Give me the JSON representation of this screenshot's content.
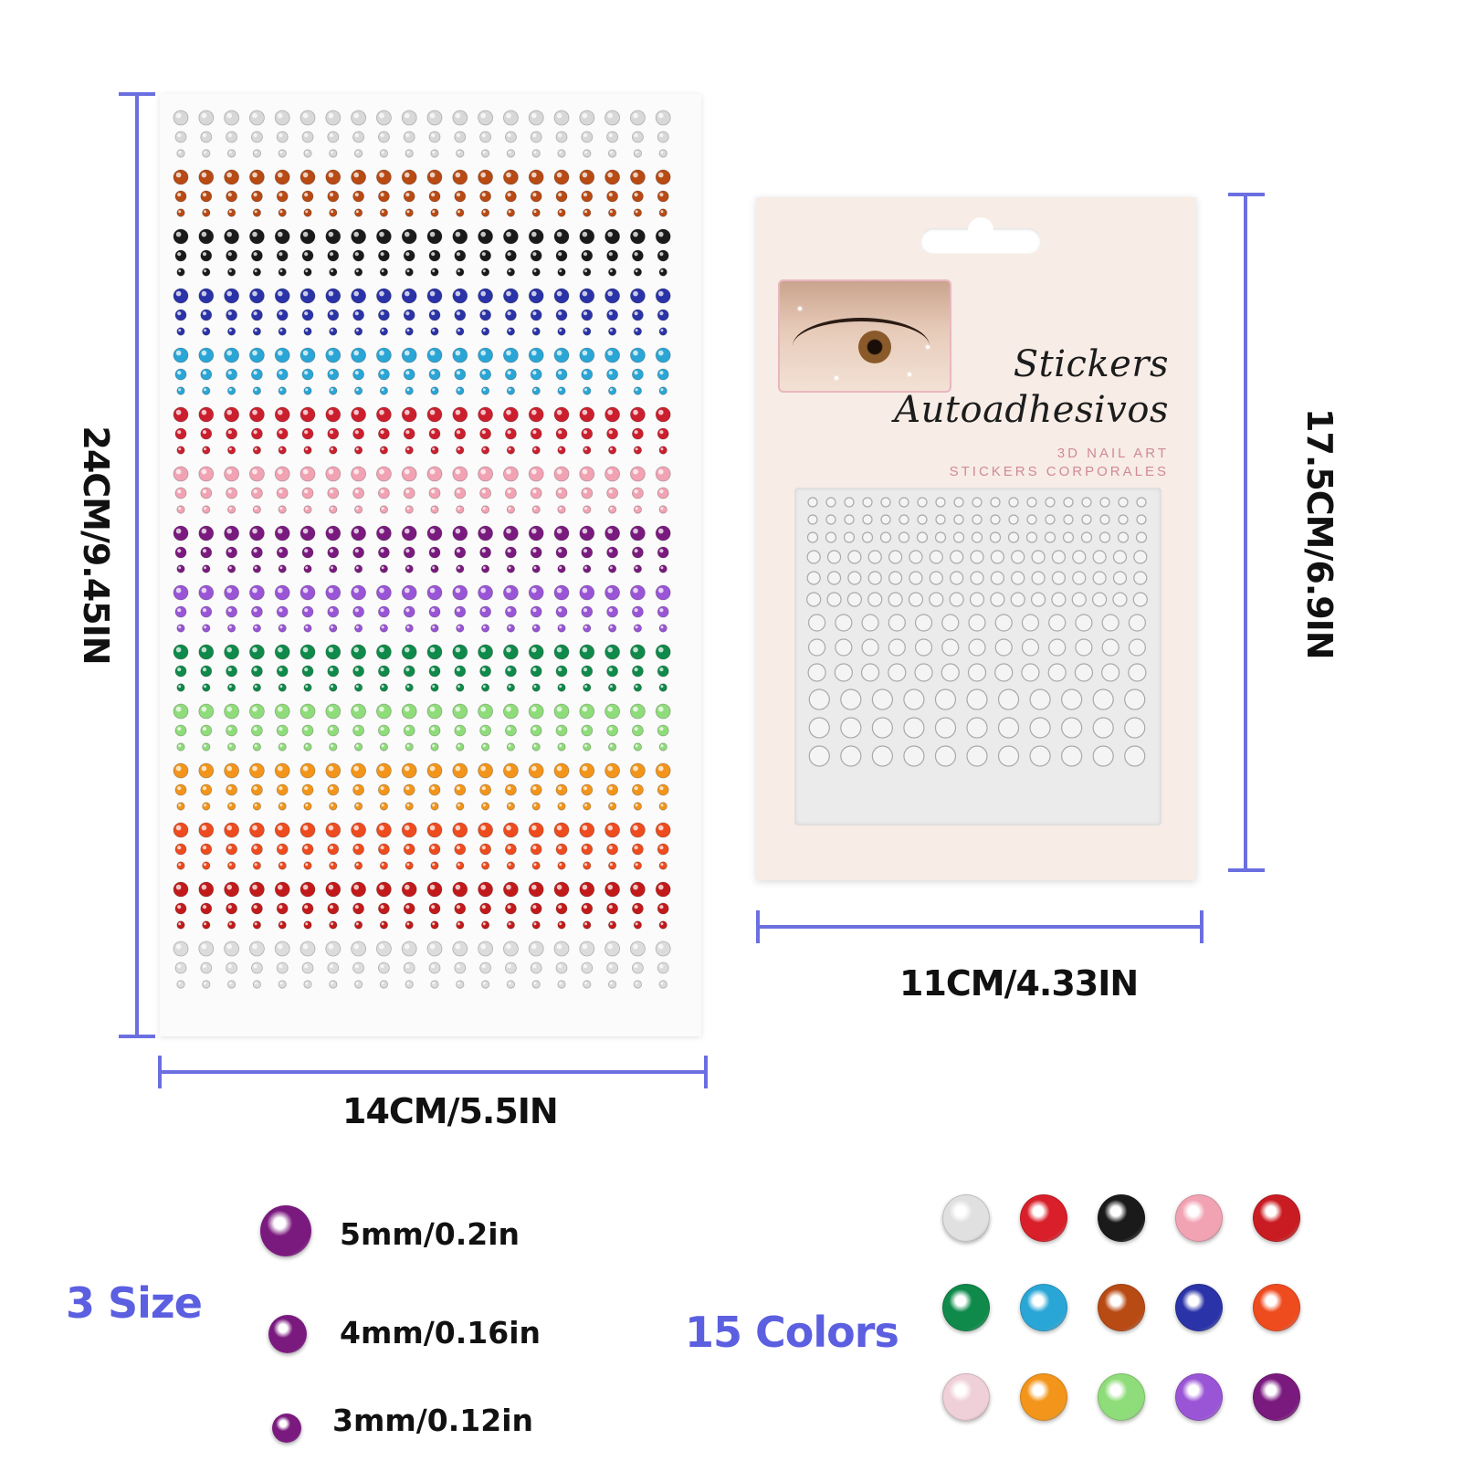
{
  "large_sheet": {
    "width_label": "14CM/5.5IN",
    "height_label": "24CM/9.45IN",
    "row_colors": [
      "#d8d8d8",
      "#b84a14",
      "#1a1a1a",
      "#2b33a8",
      "#2aa6d6",
      "#cc1f2e",
      "#f2a3b3",
      "#7a1a7e",
      "#9a55d6",
      "#0f8a4a",
      "#8fdc7a",
      "#f2951a",
      "#ee4b1f",
      "#c21a1a",
      "#dcdcdc"
    ]
  },
  "card": {
    "title_line1": "Stickers",
    "title_line2": "Autoadhesivos",
    "subtitle_line1": "3D NAIL ART",
    "subtitle_line2": "STICKERS CORPORALES",
    "width_label": "11CM/4.33IN",
    "height_label": "17.5CM/6.9IN"
  },
  "sizes": {
    "heading": "3 Size",
    "items": [
      {
        "label": "5mm/0.2in"
      },
      {
        "label": "4mm/0.16in"
      },
      {
        "label": "3mm/0.12in"
      }
    ],
    "gem_color": "#7a1a7e"
  },
  "colors": {
    "heading": "15 Colors",
    "swatches": [
      "#e0e0e0",
      "#d81f2a",
      "#1a1a1a",
      "#f2a3b3",
      "#c91c22",
      "#0f8a4a",
      "#2aa6d6",
      "#b84a14",
      "#2b33a8",
      "#ee4b1f",
      "#f0d0d8",
      "#f2951a",
      "#8fdc7a",
      "#9a55d6",
      "#7a1a7e"
    ]
  }
}
